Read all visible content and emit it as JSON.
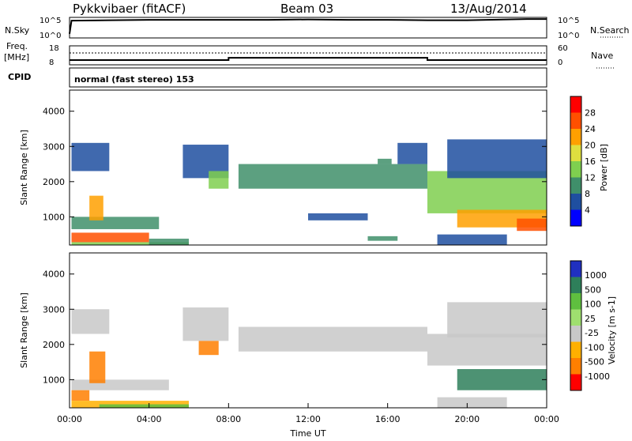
{
  "header": {
    "station": "Pykkvibaer (fitACF)",
    "beam": "Beam 03",
    "date": "13/Aug/2014"
  },
  "colors": {
    "power_scale": [
      "#0000ff",
      "#1f4fa0",
      "#3f8f6a",
      "#7fcf4f",
      "#dfdf3f",
      "#ffa000",
      "#ff5000",
      "#ff0000"
    ],
    "velocity_scale": [
      "#2030c0",
      "#2e7f5a",
      "#5fbf3f",
      "#9fdf6f",
      "#c8c8c8",
      "#ffb000",
      "#ff7f00",
      "#ff0000"
    ]
  },
  "chart_data": [
    {
      "type": "line",
      "title": "N.Sky / N.Search",
      "left_label": "N.Sky",
      "right_label": "N.Search",
      "left_ticks": [
        "10^5",
        "10^0"
      ],
      "right_ticks": [
        "10^5",
        "10^0"
      ],
      "x_range_hours": [
        0,
        24
      ],
      "series": [
        {
          "name": "N.Sky",
          "x": [
            0,
            0.1,
            2,
            4,
            6,
            8,
            10,
            12,
            14,
            16,
            18,
            20,
            22,
            23,
            24
          ],
          "y": [
            1,
            4.2,
            4.3,
            4.4,
            4.4,
            4.4,
            4.4,
            4.5,
            4.4,
            4.4,
            4.3,
            4.3,
            4.5,
            4.6,
            4.6
          ]
        }
      ]
    },
    {
      "type": "line",
      "title": "Freq / Nave",
      "left_label": "Freq. [MHz]",
      "right_label": "Nave",
      "left_ticks": [
        "18",
        "8"
      ],
      "right_ticks": [
        "60",
        "0"
      ],
      "x_range_hours": [
        0,
        24
      ],
      "series": [
        {
          "name": "Freq.",
          "x": [
            0,
            8,
            8,
            18,
            18,
            24
          ],
          "y": [
            10.5,
            10.5,
            11.7,
            11.7,
            10.5,
            10.5
          ]
        }
      ]
    },
    {
      "type": "table",
      "label": "CPID",
      "value": "normal (fast stereo) 153"
    },
    {
      "type": "heatmap",
      "title": "Power",
      "ylabel": "Slant Range [km]",
      "ylim": [
        200,
        4600
      ],
      "yticks": [
        "4000",
        "3000",
        "2000",
        "1000"
      ],
      "colorbar_label": "Power [dB]",
      "colorbar_ticks": [
        "28",
        "24",
        "20",
        "16",
        "12",
        "8",
        "4"
      ],
      "x_range_hours": [
        0,
        24
      ],
      "regions": [
        {
          "x": [
            0.1,
            2.0
          ],
          "y": [
            2300,
            3100
          ],
          "value": 8
        },
        {
          "x": [
            0.1,
            4.5
          ],
          "y": [
            650,
            1000
          ],
          "value": 12
        },
        {
          "x": [
            1.0,
            1.7
          ],
          "y": [
            900,
            1600
          ],
          "value": 24
        },
        {
          "x": [
            0.1,
            4.0
          ],
          "y": [
            280,
            550
          ],
          "value": 28
        },
        {
          "x": [
            0.1,
            6.0
          ],
          "y": [
            200,
            280
          ],
          "value": 16
        },
        {
          "x": [
            4.0,
            6.0
          ],
          "y": [
            200,
            380
          ],
          "value": 12
        },
        {
          "x": [
            5.7,
            8.0
          ],
          "y": [
            2100,
            3050
          ],
          "value": 8
        },
        {
          "x": [
            7.0,
            8.0
          ],
          "y": [
            1800,
            2300
          ],
          "value": 16
        },
        {
          "x": [
            8.5,
            18.0
          ],
          "y": [
            1800,
            2500
          ],
          "value": 12
        },
        {
          "x": [
            15.5,
            16.2
          ],
          "y": [
            2500,
            2650
          ],
          "value": 12
        },
        {
          "x": [
            12.0,
            15.0
          ],
          "y": [
            900,
            1100
          ],
          "value": 8
        },
        {
          "x": [
            15.0,
            16.5
          ],
          "y": [
            320,
            450
          ],
          "value": 12
        },
        {
          "x": [
            16.5,
            18.0
          ],
          "y": [
            2500,
            3100
          ],
          "value": 8
        },
        {
          "x": [
            18.0,
            24.0
          ],
          "y": [
            1100,
            2300
          ],
          "value": 16
        },
        {
          "x": [
            19.5,
            24.0
          ],
          "y": [
            700,
            1200
          ],
          "value": 24
        },
        {
          "x": [
            22.5,
            24.0
          ],
          "y": [
            600,
            950
          ],
          "value": 28
        },
        {
          "x": [
            19.0,
            24.0
          ],
          "y": [
            2100,
            3200
          ],
          "value": 8
        },
        {
          "x": [
            18.5,
            22.0
          ],
          "y": [
            200,
            500
          ],
          "value": 8
        }
      ]
    },
    {
      "type": "heatmap",
      "title": "Velocity",
      "ylabel": "Slant Range [km]",
      "ylim": [
        200,
        4600
      ],
      "yticks": [
        "4000",
        "3000",
        "2000",
        "1000"
      ],
      "colorbar_label": "Velocity [m s-1]",
      "colorbar_ticks": [
        "1000",
        "500",
        "100",
        "25",
        "-25",
        "-100",
        "-500",
        "-1000"
      ],
      "x_range_hours": [
        0,
        24
      ],
      "regions": [
        {
          "x": [
            0.1,
            2.0
          ],
          "y": [
            2300,
            3000
          ],
          "value": 0
        },
        {
          "x": [
            0.1,
            5.0
          ],
          "y": [
            700,
            1000
          ],
          "value": 0
        },
        {
          "x": [
            1.0,
            1.8
          ],
          "y": [
            900,
            1800
          ],
          "value": -500
        },
        {
          "x": [
            0.1,
            1.0
          ],
          "y": [
            400,
            700
          ],
          "value": -500
        },
        {
          "x": [
            0.1,
            6.0
          ],
          "y": [
            200,
            400
          ],
          "value": -100
        },
        {
          "x": [
            1.5,
            6.0
          ],
          "y": [
            200,
            300
          ],
          "value": 100
        },
        {
          "x": [
            5.7,
            8.0
          ],
          "y": [
            2100,
            3050
          ],
          "value": 0
        },
        {
          "x": [
            6.5,
            7.5
          ],
          "y": [
            1700,
            2100
          ],
          "value": -500
        },
        {
          "x": [
            8.5,
            18.0
          ],
          "y": [
            1800,
            2500
          ],
          "value": 0
        },
        {
          "x": [
            18.0,
            24.0
          ],
          "y": [
            1400,
            2300
          ],
          "value": 0
        },
        {
          "x": [
            19.5,
            24.0
          ],
          "y": [
            700,
            1300
          ],
          "value": 500
        },
        {
          "x": [
            19.0,
            24.0
          ],
          "y": [
            2200,
            3200
          ],
          "value": 0
        },
        {
          "x": [
            18.5,
            22.0
          ],
          "y": [
            200,
            500
          ],
          "value": 0
        }
      ]
    }
  ],
  "x_axis": {
    "ticks": [
      "00:00",
      "04:00",
      "08:00",
      "12:00",
      "16:00",
      "20:00",
      "00:00"
    ],
    "label": "Time UT"
  }
}
